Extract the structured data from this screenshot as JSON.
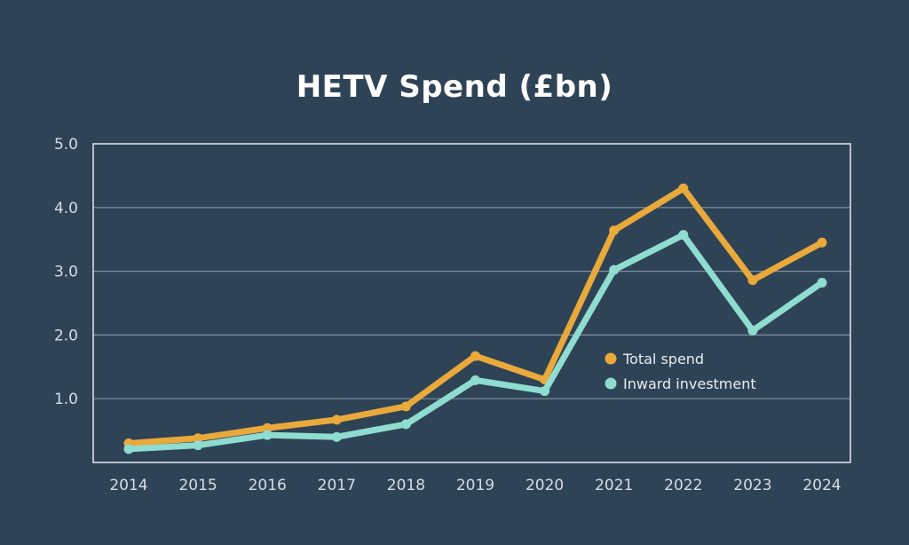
{
  "chart_data": {
    "type": "line",
    "title": "HETV Spend (£bn)",
    "xlabel": "",
    "ylabel": "",
    "x": [
      "2014",
      "2015",
      "2016",
      "2017",
      "2018",
      "2019",
      "2020",
      "2021",
      "2022",
      "2023",
      "2024"
    ],
    "ylim": [
      0,
      5
    ],
    "yticks": [
      "5.0",
      "4.0",
      "3.0",
      "2.0",
      "1.0"
    ],
    "ytick_values": [
      5,
      4,
      3,
      2,
      1
    ],
    "grid": true,
    "legend_position": "center-right",
    "series": [
      {
        "name": "Total spend",
        "color": "#e9a93b",
        "values": [
          0.3,
          0.38,
          0.54,
          0.67,
          0.88,
          1.67,
          1.3,
          3.64,
          4.3,
          2.86,
          3.45
        ]
      },
      {
        "name": "Inward investment",
        "color": "#8fdcd0",
        "values": [
          0.21,
          0.27,
          0.43,
          0.4,
          0.6,
          1.29,
          1.12,
          3.02,
          3.57,
          2.07,
          2.82
        ]
      }
    ]
  },
  "colors": {
    "background": "#2f4357",
    "axis": "#d9dee3",
    "grid": "#8090a0"
  }
}
